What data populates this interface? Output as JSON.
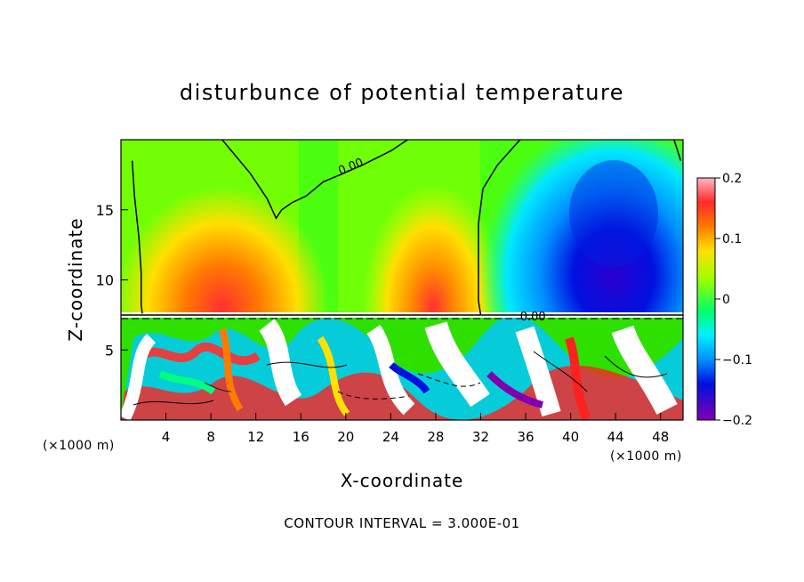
{
  "chart_data": {
    "type": "heatmap",
    "title": "disturbunce of potential temperature",
    "xlabel": "X-coordinate",
    "ylabel": "Z-coordinate",
    "x_unit_label": "(×1000 m)",
    "x_unit_label_right": "(×1000 m)",
    "footer": "CONTOUR INTERVAL = 3.000E-01",
    "xlim": [
      0,
      50
    ],
    "ylim": [
      0,
      20
    ],
    "x_ticks": [
      4,
      8,
      12,
      16,
      20,
      24,
      28,
      32,
      36,
      40,
      44,
      48
    ],
    "x_tick_labels": [
      "4",
      "8",
      "12",
      "16",
      "20",
      "24",
      "28",
      "32",
      "36",
      "40",
      "44",
      "48"
    ],
    "y_ticks": [
      5,
      10,
      15
    ],
    "y_tick_labels": [
      "5",
      "10",
      "15"
    ],
    "colorbar": {
      "range": [
        -0.2,
        0.2
      ],
      "ticks": [
        0.2,
        0.1,
        0,
        -0.1,
        -0.2
      ],
      "tick_labels": [
        "0.2",
        "0.1",
        "0",
        "−0.1",
        "−0.2"
      ]
    },
    "contour_labels": [
      {
        "text": "0.00",
        "x": 19.5,
        "z": 17.5
      },
      {
        "text": "0.00",
        "x": 35.5,
        "z": 7.1
      }
    ],
    "zero_contour": [
      [
        1.0,
        18.5
      ],
      [
        1.2,
        16
      ],
      [
        1.6,
        13
      ],
      [
        1.8,
        10.5
      ],
      [
        1.8,
        8.2
      ],
      [
        1.9,
        7.6
      ]
    ],
    "zero_contour_2": [
      [
        9.0,
        20
      ],
      [
        11.5,
        17.6
      ],
      [
        13.0,
        15.8
      ],
      [
        13.8,
        14.4
      ],
      [
        14.3,
        15.0
      ],
      [
        15.2,
        15.5
      ],
      [
        16.5,
        16.0
      ],
      [
        18.0,
        17.0
      ],
      [
        19.5,
        17.5
      ],
      [
        21.5,
        18.2
      ],
      [
        24.0,
        19.2
      ],
      [
        25.5,
        20
      ]
    ],
    "zero_contour_3": [
      [
        35.5,
        20
      ],
      [
        33.5,
        18.2
      ],
      [
        32.2,
        16.5
      ],
      [
        31.8,
        14
      ],
      [
        31.8,
        11
      ],
      [
        31.8,
        8.5
      ],
      [
        32.0,
        7.5
      ]
    ],
    "zero_contour_4": [
      [
        49.2,
        20
      ],
      [
        49.8,
        18.5
      ]
    ],
    "upper_field": {
      "description_values": [
        {
          "x": 7,
          "z": 10.5,
          "value": 0.12
        },
        {
          "x": 10,
          "z": 9.0,
          "value": 0.16
        },
        {
          "x": 5,
          "z": 14,
          "value": 0.08
        },
        {
          "x": 20,
          "z": 18,
          "value": 0.01
        },
        {
          "x": 27,
          "z": 9.5,
          "value": 0.14
        },
        {
          "x": 27,
          "z": 13,
          "value": 0.08
        },
        {
          "x": 15,
          "z": 11,
          "value": 0.02
        },
        {
          "x": 44,
          "z": 12,
          "value": -0.17
        },
        {
          "x": 42,
          "z": 9.5,
          "value": -0.15
        },
        {
          "x": 45,
          "z": 16,
          "value": -0.12
        },
        {
          "x": 38,
          "z": 17,
          "value": -0.04
        },
        {
          "x": 36,
          "z": 10,
          "value": -0.1
        }
      ]
    },
    "interface_z": 7.5
  }
}
